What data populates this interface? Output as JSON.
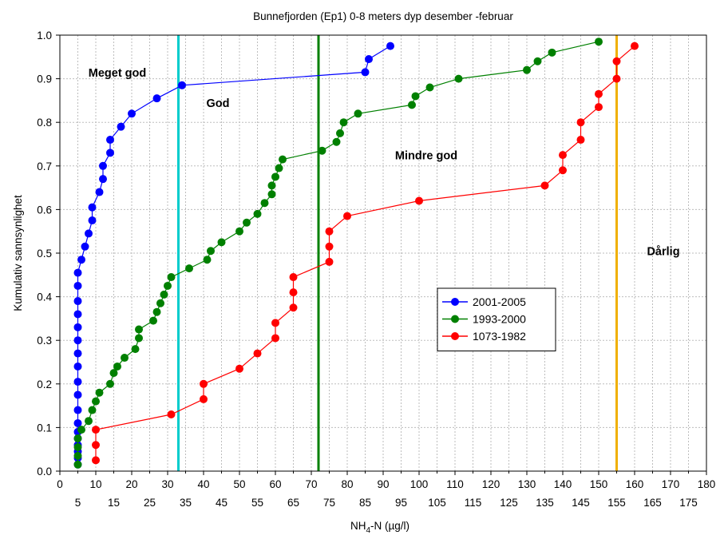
{
  "chart_data": {
    "type": "line",
    "title": "Bunnefjorden (Ep1) 0-8 meters dyp desember -februar",
    "xlabel": {
      "main": "NH",
      "sub": "4",
      "rest": "-N (µg/l)"
    },
    "ylabel": "Kumulativ sannsynlighet",
    "xlim": [
      0,
      180
    ],
    "ylim": [
      0,
      1
    ],
    "grid": true,
    "x_ticks_major": [
      0,
      10,
      20,
      30,
      40,
      50,
      60,
      70,
      80,
      90,
      100,
      110,
      120,
      130,
      140,
      150,
      160,
      170,
      180
    ],
    "x_ticks_minor": [
      5,
      15,
      25,
      35,
      45,
      55,
      65,
      75,
      85,
      95,
      105,
      115,
      125,
      135,
      145,
      155,
      165,
      175
    ],
    "y_ticks": [
      0.0,
      0.1,
      0.2,
      0.3,
      0.4,
      0.5,
      0.6,
      0.7,
      0.8,
      0.9,
      1.0
    ],
    "y_tick_labels": [
      "0.0",
      "0.1",
      "0.2",
      "0.3",
      "0.4",
      "0.5",
      "0.6",
      "0.7",
      "0.8",
      "0.9",
      "1.0"
    ],
    "legend_position": "center-right",
    "series": [
      {
        "name": "2001-2005",
        "color": "#0000ff",
        "points": [
          [
            5,
            0.015
          ],
          [
            5,
            0.03
          ],
          [
            5,
            0.045
          ],
          [
            5,
            0.06
          ],
          [
            5,
            0.075
          ],
          [
            5,
            0.09
          ],
          [
            5,
            0.11
          ],
          [
            5,
            0.14
          ],
          [
            5,
            0.175
          ],
          [
            5,
            0.205
          ],
          [
            5,
            0.24
          ],
          [
            5,
            0.27
          ],
          [
            5,
            0.3
          ],
          [
            5,
            0.33
          ],
          [
            5,
            0.36
          ],
          [
            5,
            0.39
          ],
          [
            5,
            0.425
          ],
          [
            5,
            0.455
          ],
          [
            6,
            0.485
          ],
          [
            7,
            0.515
          ],
          [
            8,
            0.545
          ],
          [
            9,
            0.575
          ],
          [
            9,
            0.605
          ],
          [
            11,
            0.64
          ],
          [
            12,
            0.67
          ],
          [
            12,
            0.7
          ],
          [
            14,
            0.73
          ],
          [
            14,
            0.76
          ],
          [
            17,
            0.79
          ],
          [
            20,
            0.82
          ],
          [
            27,
            0.855
          ],
          [
            34,
            0.885
          ],
          [
            85,
            0.915
          ],
          [
            86,
            0.945
          ],
          [
            92,
            0.975
          ]
        ]
      },
      {
        "name": "1993-2000",
        "color": "#008000",
        "points": [
          [
            5,
            0.015
          ],
          [
            5,
            0.035
          ],
          [
            5,
            0.055
          ],
          [
            5,
            0.075
          ],
          [
            6,
            0.095
          ],
          [
            8,
            0.115
          ],
          [
            9,
            0.14
          ],
          [
            10,
            0.16
          ],
          [
            11,
            0.18
          ],
          [
            14,
            0.2
          ],
          [
            15,
            0.225
          ],
          [
            16,
            0.24
          ],
          [
            18,
            0.26
          ],
          [
            21,
            0.28
          ],
          [
            22,
            0.305
          ],
          [
            22,
            0.325
          ],
          [
            26,
            0.345
          ],
          [
            27,
            0.365
          ],
          [
            28,
            0.385
          ],
          [
            29,
            0.405
          ],
          [
            30,
            0.425
          ],
          [
            31,
            0.445
          ],
          [
            36,
            0.465
          ],
          [
            41,
            0.485
          ],
          [
            42,
            0.505
          ],
          [
            45,
            0.525
          ],
          [
            50,
            0.55
          ],
          [
            52,
            0.57
          ],
          [
            55,
            0.59
          ],
          [
            57,
            0.615
          ],
          [
            59,
            0.635
          ],
          [
            59,
            0.655
          ],
          [
            60,
            0.675
          ],
          [
            61,
            0.695
          ],
          [
            62,
            0.715
          ],
          [
            73,
            0.735
          ],
          [
            77,
            0.755
          ],
          [
            78,
            0.775
          ],
          [
            79,
            0.8
          ],
          [
            83,
            0.82
          ],
          [
            98,
            0.84
          ],
          [
            99,
            0.86
          ],
          [
            103,
            0.88
          ],
          [
            111,
            0.9
          ],
          [
            130,
            0.92
          ],
          [
            133,
            0.94
          ],
          [
            137,
            0.96
          ],
          [
            150,
            0.985
          ]
        ]
      },
      {
        "name": "1073-1982",
        "color": "#ff0000",
        "points": [
          [
            10,
            0.025
          ],
          [
            10,
            0.06
          ],
          [
            10,
            0.095
          ],
          [
            31,
            0.13
          ],
          [
            40,
            0.165
          ],
          [
            40,
            0.2
          ],
          [
            50,
            0.235
          ],
          [
            55,
            0.27
          ],
          [
            60,
            0.305
          ],
          [
            60,
            0.34
          ],
          [
            65,
            0.375
          ],
          [
            65,
            0.41
          ],
          [
            65,
            0.445
          ],
          [
            75,
            0.48
          ],
          [
            75,
            0.515
          ],
          [
            75,
            0.55
          ],
          [
            80,
            0.585
          ],
          [
            100,
            0.62
          ],
          [
            135,
            0.655
          ],
          [
            140,
            0.69
          ],
          [
            140,
            0.725
          ],
          [
            145,
            0.76
          ],
          [
            145,
            0.8
          ],
          [
            150,
            0.835
          ],
          [
            150,
            0.865
          ],
          [
            155,
            0.9
          ],
          [
            155,
            0.94
          ],
          [
            160,
            0.975
          ]
        ]
      }
    ],
    "vertical_lines": [
      {
        "x": 33,
        "color": "#00cccc"
      },
      {
        "x": 72,
        "color": "#008000"
      },
      {
        "x": 155,
        "color": "#f0b000"
      }
    ],
    "annotations": [
      {
        "text": "Meget god",
        "x": 16,
        "y": 0.905
      },
      {
        "text": "God",
        "x": 44,
        "y": 0.835
      },
      {
        "text": "Mindre god",
        "x": 102,
        "y": 0.715
      },
      {
        "text": "Dårlig",
        "x": 168,
        "y": 0.495
      }
    ]
  }
}
